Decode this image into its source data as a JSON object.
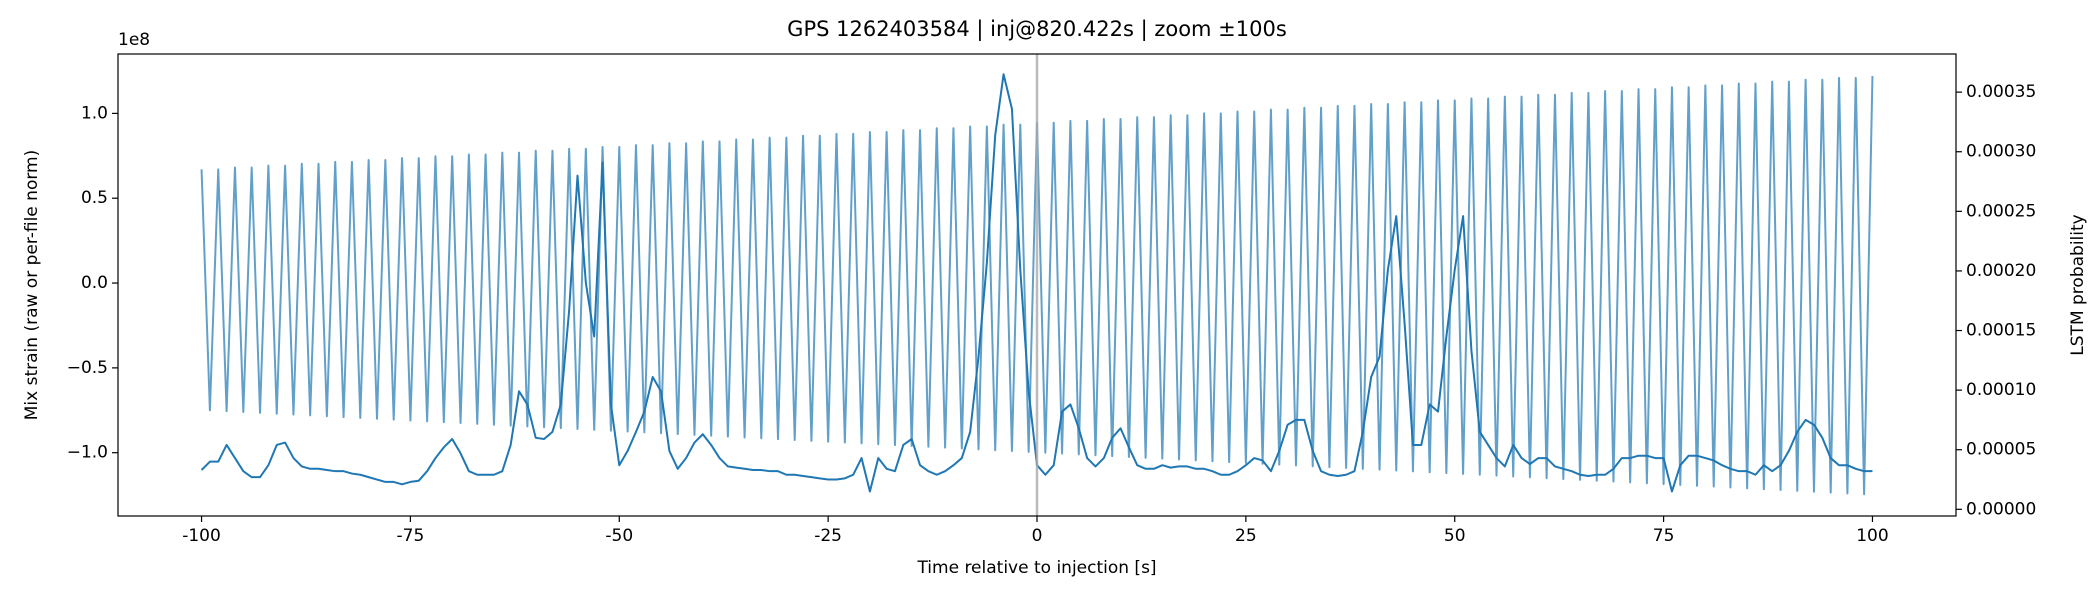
{
  "chart_data": {
    "type": "line",
    "title": "GPS 1262403584 | inj@820.422s | zoom ±100s",
    "xlabel": "Time relative to injection [s]",
    "ylabel": "Mix strain (raw or per-file norm)",
    "y2label": "LSTM probability",
    "y_offset_label": "1e8",
    "xlim": [
      -110,
      110
    ],
    "xticks": [
      -100,
      -75,
      -50,
      -25,
      0,
      25,
      50,
      75,
      100
    ],
    "ylim": [
      -1.373,
      1.35
    ],
    "yticks": [
      {
        "value": -1.0,
        "label": "−1.0"
      },
      {
        "value": -0.5,
        "label": "−0.5"
      },
      {
        "value": 0,
        "label": "0.0"
      },
      {
        "value": 0.5,
        "label": "0.5"
      },
      {
        "value": 1.0,
        "label": "1.0"
      }
    ],
    "y2lim": [
      -5.6e-06,
      0.000382
    ],
    "y2ticks": [
      {
        "value": 0,
        "label": "0.00000"
      },
      {
        "value": 5e-05,
        "label": "0.00005"
      },
      {
        "value": 0.0001,
        "label": "0.00010"
      },
      {
        "value": 0.00015,
        "label": "0.00015"
      },
      {
        "value": 0.0002,
        "label": "0.00020"
      },
      {
        "value": 0.00025,
        "label": "0.00025"
      },
      {
        "value": 0.0003,
        "label": "0.00030"
      },
      {
        "value": 0.00035,
        "label": "0.00035"
      }
    ],
    "vline_x": 0,
    "vline_color": "#aaaaaa",
    "x": [
      -100,
      -99,
      -98,
      -97,
      -96,
      -95,
      -94,
      -93,
      -92,
      -91,
      -90,
      -89,
      -88,
      -87,
      -86,
      -85,
      -84,
      -83,
      -82,
      -81,
      -80,
      -79,
      -78,
      -77,
      -76,
      -75,
      -74,
      -73,
      -72,
      -71,
      -70,
      -69,
      -68,
      -67,
      -66,
      -65,
      -64,
      -63,
      -62,
      -61,
      -60,
      -59,
      -58,
      -57,
      -56,
      -55,
      -54,
      -53,
      -52,
      -51,
      -50,
      -49,
      -48,
      -47,
      -46,
      -45,
      -44,
      -43,
      -42,
      -41,
      -40,
      -39,
      -38,
      -37,
      -36,
      -35,
      -34,
      -33,
      -32,
      -31,
      -30,
      -29,
      -28,
      -27,
      -26,
      -25,
      -24,
      -23,
      -22,
      -21,
      -20,
      -19,
      -18,
      -17,
      -16,
      -15,
      -14,
      -13,
      -12,
      -11,
      -10,
      -9,
      -8,
      -7,
      -6,
      -5,
      -4,
      -3,
      -2,
      -1,
      0,
      1,
      2,
      3,
      4,
      5,
      6,
      7,
      8,
      9,
      10,
      11,
      12,
      13,
      14,
      15,
      16,
      17,
      18,
      19,
      20,
      21,
      22,
      23,
      24,
      25,
      26,
      27,
      28,
      29,
      30,
      31,
      32,
      33,
      34,
      35,
      36,
      37,
      38,
      39,
      40,
      41,
      42,
      43,
      44,
      45,
      46,
      47,
      48,
      49,
      50,
      51,
      52,
      53,
      54,
      55,
      56,
      57,
      58,
      59,
      60,
      61,
      62,
      63,
      64,
      65,
      66,
      67,
      68,
      69,
      70,
      71,
      72,
      73,
      74,
      75,
      76,
      77,
      78,
      79,
      80,
      81,
      82,
      83,
      84,
      85,
      86,
      87,
      88,
      89,
      90,
      91,
      92,
      93,
      94,
      95,
      96,
      97,
      98,
      99,
      100
    ],
    "series": [
      {
        "color": "#1f77b4",
        "opacity": 0.7,
        "axis": "y",
        "values": [
          0.67,
          -0.75,
          0.67,
          -0.755,
          0.681,
          -0.76,
          0.681,
          -0.765,
          0.692,
          -0.77,
          0.692,
          -0.775,
          0.703,
          -0.78,
          0.703,
          -0.785,
          0.714,
          -0.79,
          0.714,
          -0.795,
          0.725,
          -0.8,
          0.725,
          -0.805,
          0.736,
          -0.81,
          0.736,
          -0.815,
          0.747,
          -0.82,
          0.747,
          -0.825,
          0.758,
          -0.83,
          0.758,
          -0.835,
          0.769,
          -0.84,
          0.769,
          -0.845,
          0.78,
          -0.85,
          0.78,
          -0.855,
          0.791,
          -0.86,
          0.791,
          -0.865,
          0.802,
          -0.87,
          0.802,
          -0.875,
          0.813,
          -0.88,
          0.813,
          -0.885,
          0.824,
          -0.89,
          0.824,
          -0.895,
          0.835,
          -0.9,
          0.835,
          -0.905,
          0.846,
          -0.91,
          0.846,
          -0.915,
          0.857,
          -0.92,
          0.857,
          -0.925,
          0.868,
          -0.93,
          0.868,
          -0.935,
          0.879,
          -0.94,
          0.879,
          -0.945,
          0.89,
          -0.95,
          0.89,
          -0.955,
          0.901,
          -0.96,
          0.901,
          -0.965,
          0.912,
          -0.97,
          0.912,
          -0.975,
          0.923,
          -0.98,
          0.923,
          -0.985,
          0.934,
          -0.99,
          0.934,
          -0.995,
          0.945,
          -1.0,
          0.945,
          -1.005,
          0.956,
          -1.01,
          0.956,
          -1.015,
          0.967,
          -1.02,
          0.967,
          -1.025,
          0.978,
          -1.03,
          0.978,
          -1.035,
          0.989,
          -1.04,
          0.989,
          -1.045,
          1.0,
          -1.05,
          1.0,
          -1.055,
          1.011,
          -1.06,
          1.011,
          -1.065,
          1.022,
          -1.07,
          1.022,
          -1.075,
          1.033,
          -1.08,
          1.033,
          -1.085,
          1.044,
          -1.09,
          1.044,
          -1.095,
          1.055,
          -1.1,
          1.055,
          -1.105,
          1.066,
          -1.11,
          1.066,
          -1.115,
          1.077,
          -1.12,
          1.077,
          -1.125,
          1.088,
          -1.13,
          1.088,
          -1.135,
          1.099,
          -1.14,
          1.099,
          -1.145,
          1.11,
          -1.15,
          1.11,
          -1.155,
          1.121,
          -1.16,
          1.121,
          -1.165,
          1.132,
          -1.17,
          1.132,
          -1.175,
          1.143,
          -1.18,
          1.143,
          -1.185,
          1.154,
          -1.19,
          1.154,
          -1.195,
          1.165,
          -1.2,
          1.165,
          -1.205,
          1.176,
          -1.21,
          1.176,
          -1.215,
          1.187,
          -1.22,
          1.187,
          -1.225,
          1.198,
          -1.23,
          1.198,
          -1.235,
          1.209,
          -1.24,
          1.209,
          -1.245,
          1.22
        ]
      },
      {
        "color": "#1f77b4",
        "opacity": 1,
        "axis": "y2",
        "values": [
          3.3e-05,
          4e-05,
          4e-05,
          5.4e-05,
          4.3e-05,
          3.2e-05,
          2.7e-05,
          2.7e-05,
          3.7e-05,
          5.4e-05,
          5.6e-05,
          4.3e-05,
          3.6e-05,
          3.4e-05,
          3.4e-05,
          3.3e-05,
          3.2e-05,
          3.2e-05,
          3e-05,
          2.9e-05,
          2.7e-05,
          2.5e-05,
          2.3e-05,
          2.3e-05,
          2.1e-05,
          2.3e-05,
          2.4e-05,
          3.2e-05,
          4.3e-05,
          5.2e-05,
          5.9e-05,
          4.7e-05,
          3.2e-05,
          2.9e-05,
          2.9e-05,
          2.9e-05,
          3.2e-05,
          5.4e-05,
          9.9e-05,
          8.8e-05,
          6e-05,
          5.9e-05,
          6.5e-05,
          8.8e-05,
          0.000167,
          0.00028,
          0.00019,
          0.000145,
          0.000291,
          8.8e-05,
          3.7e-05,
          4.9e-05,
          6.5e-05,
          8.2e-05,
          0.000111,
          9.9e-05,
          4.9e-05,
          3.4e-05,
          4.3e-05,
          5.6e-05,
          6.3e-05,
          5.4e-05,
          4.3e-05,
          3.6e-05,
          3.5e-05,
          3.4e-05,
          3.3e-05,
          3.3e-05,
          3.2e-05,
          3.2e-05,
          2.9e-05,
          2.9e-05,
          2.8e-05,
          2.7e-05,
          2.6e-05,
          2.5e-05,
          2.5e-05,
          2.6e-05,
          2.9e-05,
          4.3e-05,
          1.5e-05,
          4.3e-05,
          3.4e-05,
          3.2e-05,
          5.4e-05,
          5.9e-05,
          3.7e-05,
          3.2e-05,
          2.9e-05,
          3.2e-05,
          3.7e-05,
          4.3e-05,
          6.5e-05,
          0.000128,
          0.000207,
          0.000314,
          0.000365,
          0.000336,
          0.000201,
          9.9e-05,
          3.7e-05,
          2.9e-05,
          3.7e-05,
          8.2e-05,
          8.8e-05,
          6.8e-05,
          4.3e-05,
          3.6e-05,
          4.3e-05,
          6e-05,
          6.8e-05,
          5.2e-05,
          3.7e-05,
          3.4e-05,
          3.4e-05,
          3.7e-05,
          3.5e-05,
          3.6e-05,
          3.6e-05,
          3.4e-05,
          3.4e-05,
          3.2e-05,
          2.9e-05,
          2.9e-05,
          3.2e-05,
          3.7e-05,
          4.3e-05,
          4.1e-05,
          3.2e-05,
          4.9e-05,
          7.1e-05,
          7.5e-05,
          7.5e-05,
          4.9e-05,
          3.2e-05,
          2.9e-05,
          2.8e-05,
          2.9e-05,
          3.2e-05,
          6.5e-05,
          0.000111,
          0.000128,
          0.000201,
          0.000246,
          0.000156,
          5.4e-05,
          5.4e-05,
          8.8e-05,
          8.2e-05,
          0.000145,
          0.000201,
          0.000246,
          0.000133,
          6.5e-05,
          5.4e-05,
          4.3e-05,
          3.6e-05,
          5.4e-05,
          4.3e-05,
          3.8e-05,
          4.3e-05,
          4.3e-05,
          3.6e-05,
          3.4e-05,
          3.2e-05,
          2.9e-05,
          2.8e-05,
          2.9e-05,
          2.9e-05,
          3.4e-05,
          4.3e-05,
          4.3e-05,
          4.5e-05,
          4.5e-05,
          4.3e-05,
          4.3e-05,
          1.5e-05,
          3.7e-05,
          4.5e-05,
          4.5e-05,
          4.3e-05,
          4.1e-05,
          3.7e-05,
          3.4e-05,
          3.2e-05,
          3.2e-05,
          2.9e-05,
          3.7e-05,
          3.2e-05,
          3.7e-05,
          4.9e-05,
          6.5e-05,
          7.5e-05,
          7.1e-05,
          6e-05,
          4.3e-05,
          3.7e-05,
          3.7e-05,
          3.4e-05,
          3.2e-05,
          3.2e-05
        ]
      }
    ]
  }
}
